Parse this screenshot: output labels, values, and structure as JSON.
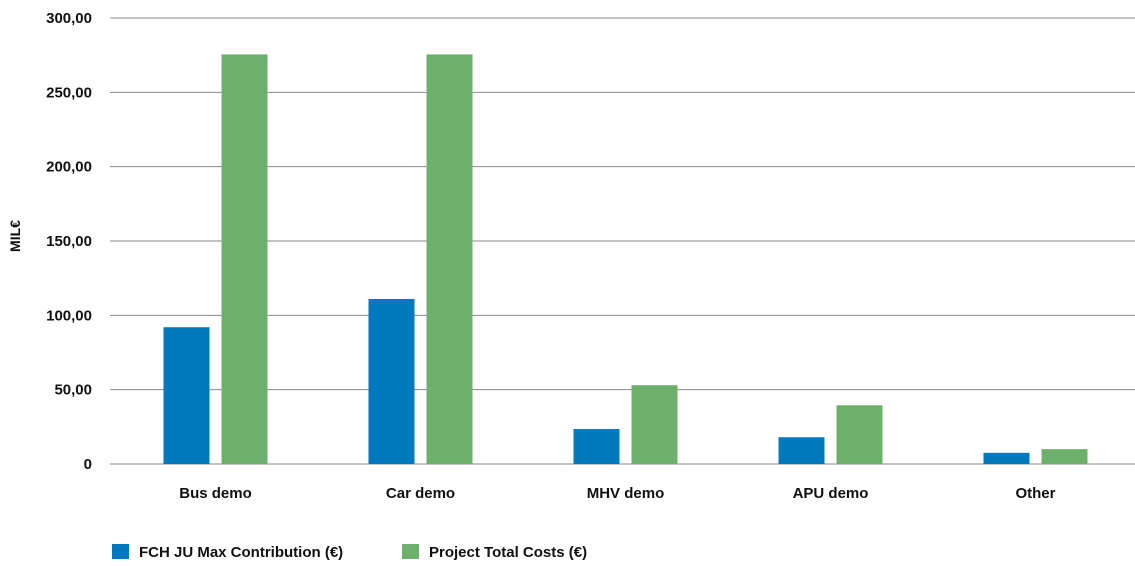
{
  "chart_data": {
    "type": "bar",
    "title": "",
    "xlabel": "",
    "ylabel": "MIL€",
    "categories": [
      "Bus demo",
      "Car demo",
      "MHV demo",
      "APU demo",
      "Other"
    ],
    "series": [
      {
        "name": "FCH JU Max Contribution (€)",
        "color": "#0079bf",
        "values": [
          92,
          111,
          23.5,
          18,
          7.5
        ]
      },
      {
        "name": "Project Total Costs (€)",
        "color": "#6db06b",
        "values": [
          275.5,
          275.5,
          53,
          39.5,
          10
        ]
      }
    ],
    "ylim": [
      0,
      300
    ],
    "yticks": [
      0,
      50,
      100,
      150,
      200,
      250,
      300
    ],
    "ytick_labels": [
      "0",
      "50,00",
      "100,00",
      "150,00",
      "200,00",
      "250,00",
      "300,00"
    ],
    "grid": true,
    "legend_position": "bottom-left"
  }
}
